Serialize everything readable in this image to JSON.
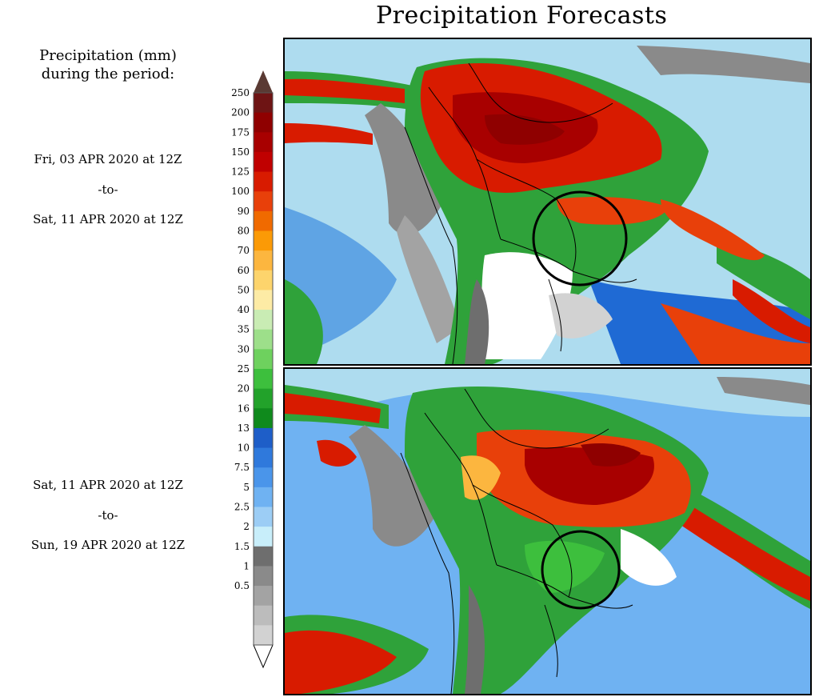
{
  "title": "Precipitation Forecasts",
  "legend_heading": [
    "Precipitation (mm)",
    "during the period:"
  ],
  "periods": [
    {
      "start": "Fri, 03 APR 2020 at 12Z",
      "to": "-to-",
      "end": "Sat, 11 APR 2020 at 12Z"
    },
    {
      "start": "Sat, 11 APR 2020 at 12Z",
      "to": "-to-",
      "end": "Sun, 19 APR 2020 at 12Z"
    }
  ],
  "colorbar": {
    "labels": [
      "250",
      "200",
      "175",
      "150",
      "125",
      "100",
      "90",
      "80",
      "70",
      "60",
      "50",
      "40",
      "35",
      "30",
      "25",
      "20",
      "16",
      "13",
      "10",
      "7.5",
      "5",
      "2.5",
      "2",
      "1.5",
      "1",
      "0.5"
    ],
    "colors": [
      "#6e1414",
      "#8f0000",
      "#a80000",
      "#c00000",
      "#d81b00",
      "#e8400a",
      "#f06a00",
      "#fb9a06",
      "#fcb63f",
      "#fdd46c",
      "#fdeba5",
      "#c9ecb4",
      "#9ddf8a",
      "#6ed15e",
      "#3dbf3d",
      "#22a22a",
      "#0f8a1c",
      "#1e5ec8",
      "#2f79dc",
      "#4a95ea",
      "#6fb2f2",
      "#9ccdf5",
      "#c8eefa",
      "#6e6e6e",
      "#8a8a8a",
      "#a3a3a3",
      "#bcbcbc",
      "#d2d2d2"
    ],
    "top_arrow_color": "#5a3a33",
    "bottom_arrow_color": "#ffffff"
  },
  "maps": [
    {
      "name": "Precipitation forecast period 1",
      "highlight": "circle"
    },
    {
      "name": "Precipitation forecast period 2",
      "highlight": "circle"
    }
  ]
}
